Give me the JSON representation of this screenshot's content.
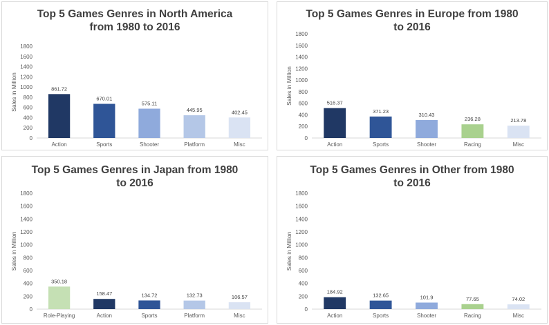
{
  "colors": {
    "dark_navy": "#203864",
    "medium_blue": "#2f5597",
    "light_blue": "#8faadc",
    "pale_blue": "#b4c7e7",
    "very_pale_blue": "#dae3f3",
    "green": "#a9d18e",
    "light_green": "#c5e0b4"
  },
  "chart_data": [
    {
      "type": "bar",
      "title": "Top 5 Games Genres in North America from 1980 to 2016",
      "ylabel": "Sales in Million",
      "xlabel": "",
      "ylim": [
        0,
        1800
      ],
      "yticks": [
        0,
        200,
        400,
        600,
        800,
        1000,
        1200,
        1400,
        1600,
        1800
      ],
      "grid": false,
      "categories": [
        "Action",
        "Sports",
        "Shooter",
        "Platform",
        "Misc"
      ],
      "values": [
        861.72,
        670.01,
        575.11,
        445.95,
        402.45
      ],
      "value_labels": [
        "861.72",
        "670.01",
        "575.11",
        "445.95",
        "402.45"
      ],
      "bar_colors": [
        "#203864",
        "#2f5597",
        "#8faadc",
        "#b4c7e7",
        "#dae3f3"
      ]
    },
    {
      "type": "bar",
      "title": "Top 5 Games Genres in Europe from 1980 to 2016",
      "ylabel": "Sales in Million",
      "xlabel": "",
      "ylim": [
        0,
        1800
      ],
      "yticks": [
        0,
        200,
        400,
        600,
        800,
        1000,
        1200,
        1400,
        1600,
        1800
      ],
      "grid": false,
      "categories": [
        "Action",
        "Sports",
        "Shooter",
        "Racing",
        "Misc"
      ],
      "values": [
        516.37,
        371.23,
        310.43,
        236.28,
        213.78
      ],
      "value_labels": [
        "516.37",
        "371.23",
        "310.43",
        "236.28",
        "213.78"
      ],
      "bar_colors": [
        "#203864",
        "#2f5597",
        "#8faadc",
        "#a9d18e",
        "#dae3f3"
      ]
    },
    {
      "type": "bar",
      "title": "Top 5 Games Genres in Japan from 1980 to 2016",
      "ylabel": "Sales in Million",
      "xlabel": "",
      "ylim": [
        0,
        1800
      ],
      "yticks": [
        0,
        200,
        400,
        600,
        800,
        1000,
        1200,
        1400,
        1600,
        1800
      ],
      "grid": false,
      "categories": [
        "Role-Playing",
        "Action",
        "Sports",
        "Platform",
        "Misc"
      ],
      "values": [
        350.18,
        158.47,
        134.72,
        132.73,
        106.57
      ],
      "value_labels": [
        "350.18",
        "158.47",
        "134.72",
        "132.73",
        "106.57"
      ],
      "bar_colors": [
        "#c5e0b4",
        "#203864",
        "#2f5597",
        "#b4c7e7",
        "#dae3f3"
      ]
    },
    {
      "type": "bar",
      "title": "Top 5 Games Genres in Other from 1980 to 2016",
      "ylabel": "Sales in Million",
      "xlabel": "",
      "ylim": [
        0,
        1800
      ],
      "yticks": [
        0,
        200,
        400,
        600,
        800,
        1000,
        1200,
        1400,
        1600,
        1800
      ],
      "grid": false,
      "categories": [
        "Action",
        "Sports",
        "Shooter",
        "Racing",
        "Misc"
      ],
      "values": [
        184.92,
        132.65,
        101.9,
        77.65,
        74.02
      ],
      "value_labels": [
        "184.92",
        "132.65",
        "101.9",
        "77.65",
        "74.02"
      ],
      "bar_colors": [
        "#203864",
        "#2f5597",
        "#8faadc",
        "#a9d18e",
        "#dae3f3"
      ]
    }
  ]
}
